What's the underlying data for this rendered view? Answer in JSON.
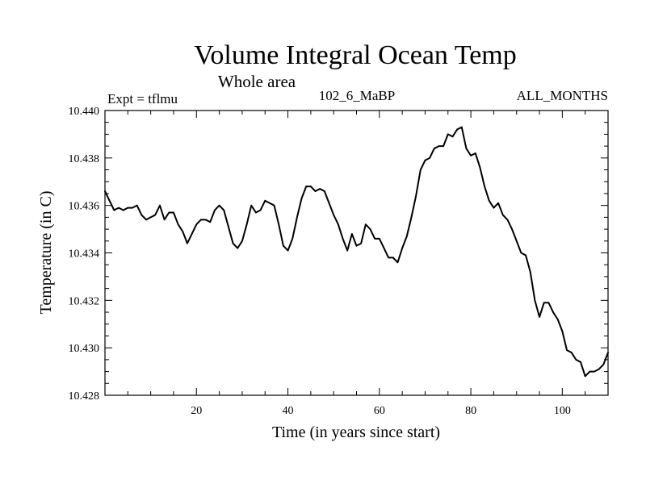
{
  "chart_data": {
    "type": "line",
    "title": "Volume Integral Ocean Temp",
    "subtitle": "Whole area",
    "left_label": "Expt = tflmu",
    "center_label": "102_6_MaBP",
    "right_label": "ALL_MONTHS",
    "xlabel": "Time (in years since start)",
    "ylabel": "Temperature (in C)",
    "xlim": [
      0,
      110
    ],
    "ylim": [
      10.428,
      10.44
    ],
    "xticks": [
      20,
      40,
      60,
      80,
      100
    ],
    "yticks": [
      "10.428",
      "10.430",
      "10.432",
      "10.434",
      "10.436",
      "10.438",
      "10.440"
    ],
    "series": [
      {
        "name": "Volume Integral Ocean Temp",
        "color": "#000000",
        "x": [
          0,
          1,
          2,
          3,
          4,
          5,
          6,
          7,
          8,
          9,
          10,
          11,
          12,
          13,
          14,
          15,
          16,
          17,
          18,
          19,
          20,
          21,
          22,
          23,
          24,
          25,
          26,
          27,
          28,
          29,
          30,
          31,
          32,
          33,
          34,
          35,
          36,
          37,
          38,
          39,
          40,
          41,
          42,
          43,
          44,
          45,
          46,
          47,
          48,
          49,
          50,
          51,
          52,
          53,
          54,
          55,
          56,
          57,
          58,
          59,
          60,
          61,
          62,
          63,
          64,
          65,
          66,
          67,
          68,
          69,
          70,
          71,
          72,
          73,
          74,
          75,
          76,
          77,
          78,
          79,
          80,
          81,
          82,
          83,
          84,
          85,
          86,
          87,
          88,
          89,
          90,
          91,
          92,
          93,
          94,
          95,
          96,
          97,
          98,
          99,
          100,
          101,
          102,
          103,
          104,
          105,
          106,
          107,
          108,
          109,
          110
        ],
        "y": [
          10.4366,
          10.4362,
          10.4358,
          10.4359,
          10.4358,
          10.4359,
          10.4359,
          10.436,
          10.4356,
          10.4354,
          10.4355,
          10.4356,
          10.436,
          10.4354,
          10.4357,
          10.4357,
          10.4352,
          10.4349,
          10.4344,
          10.4348,
          10.4352,
          10.4354,
          10.4354,
          10.4353,
          10.4358,
          10.436,
          10.4358,
          10.4351,
          10.4344,
          10.4342,
          10.4345,
          10.4352,
          10.436,
          10.4357,
          10.4358,
          10.4362,
          10.4361,
          10.436,
          10.4352,
          10.4343,
          10.4341,
          10.4346,
          10.4355,
          10.4363,
          10.4368,
          10.4368,
          10.4366,
          10.4367,
          10.4366,
          10.4361,
          10.4356,
          10.4352,
          10.4346,
          10.4341,
          10.4348,
          10.4343,
          10.4344,
          10.4352,
          10.435,
          10.4346,
          10.4346,
          10.4342,
          10.4338,
          10.4338,
          10.4336,
          10.4342,
          10.4347,
          10.4355,
          10.4364,
          10.4375,
          10.4379,
          10.438,
          10.4384,
          10.4385,
          10.4385,
          10.439,
          10.4389,
          10.4392,
          10.4393,
          10.4384,
          10.4381,
          10.4382,
          10.4376,
          10.4368,
          10.4362,
          10.4359,
          10.4361,
          10.4356,
          10.4354,
          10.435,
          10.4345,
          10.434,
          10.4339,
          10.4332,
          10.432,
          10.4313,
          10.4319,
          10.4319,
          10.4315,
          10.4312,
          10.4307,
          10.4299,
          10.4298,
          10.4295,
          10.4294,
          10.4288,
          10.429,
          10.429,
          10.4291,
          10.4293,
          10.4298
        ]
      }
    ]
  }
}
